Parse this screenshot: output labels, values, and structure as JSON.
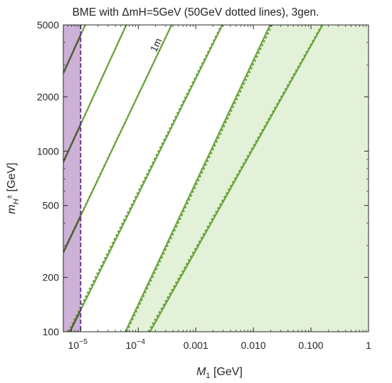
{
  "chart_data": {
    "type": "line",
    "title": "BME with ΔmH=5GeV (50GeV dotted lines), 3gen.",
    "xlabel": {
      "var": "M",
      "sub": "1",
      "unit": " [GeV]"
    },
    "ylabel": {
      "var": "m",
      "sub": "H",
      "sup": "±",
      "unit": " [GeV]"
    },
    "xscale": "log",
    "yscale": "log",
    "xlim": [
      5e-06,
      1
    ],
    "ylim": [
      100,
      5000
    ],
    "x_ticks": [
      {
        "value": 1e-05,
        "label": "10",
        "exp": "−5"
      },
      {
        "value": 0.0001,
        "label": "10",
        "exp": "−4"
      },
      {
        "value": 0.001,
        "label": "0.001"
      },
      {
        "value": 0.01,
        "label": "0.010"
      },
      {
        "value": 0.1,
        "label": "0.100"
      },
      {
        "value": 1,
        "label": "1"
      }
    ],
    "y_ticks": [
      {
        "value": 100,
        "label": "100"
      },
      {
        "value": 200,
        "label": "200"
      },
      {
        "value": 500,
        "label": "500"
      },
      {
        "value": 1000,
        "label": "1000"
      },
      {
        "value": 2000,
        "label": "2000"
      },
      {
        "value": 5000,
        "label": "5000"
      }
    ],
    "grid": false,
    "legend": "none",
    "excluded_region": {
      "x_max": 1e-05,
      "color": "#cdb1d7",
      "boundary_color": "#5b2d82"
    },
    "shaded_region": {
      "color": "#e3f1d8",
      "line_index": 4
    },
    "line_color": "#6aa43c",
    "dark_line_color": "#4f5b3a",
    "lines": [
      {
        "label": "",
        "solid": [
          [
            5e-06,
            2700
          ],
          [
            1.2e-05,
            5000
          ]
        ],
        "dotted": [
          [
            5e-06,
            2700
          ],
          [
            1.2e-05,
            5000
          ]
        ]
      },
      {
        "label": "",
        "solid": [
          [
            5e-06,
            870
          ],
          [
            6.2e-05,
            5000
          ]
        ],
        "dotted": [
          [
            5e-06,
            870
          ],
          [
            6.2e-05,
            5000
          ]
        ]
      },
      {
        "label": "1m",
        "solid": [
          [
            5e-06,
            275
          ],
          [
            0.00038,
            5000
          ]
        ],
        "dotted": [
          [
            5e-06,
            278
          ],
          [
            0.00038,
            5000
          ]
        ]
      },
      {
        "label": "",
        "solid": [
          [
            6.5e-06,
            100
          ],
          [
            0.0029,
            5000
          ]
        ],
        "dotted": [
          [
            6.1e-06,
            100
          ],
          [
            0.0028,
            5000
          ]
        ]
      },
      {
        "label": "",
        "solid": [
          [
            6e-05,
            100
          ],
          [
            0.0195,
            5000
          ]
        ],
        "dotted": [
          [
            6.3e-05,
            100
          ],
          [
            0.021,
            5000
          ]
        ]
      },
      {
        "label": "",
        "solid": [
          [
            0.00016,
            100
          ],
          [
            0.16,
            5000
          ]
        ],
        "dotted": [
          [
            0.00015,
            100
          ],
          [
            0.155,
            5000
          ]
        ]
      }
    ],
    "annotations": [
      {
        "text": "1m",
        "x": 0.00023,
        "y": 3800,
        "rotate_with_line": 2
      }
    ]
  }
}
